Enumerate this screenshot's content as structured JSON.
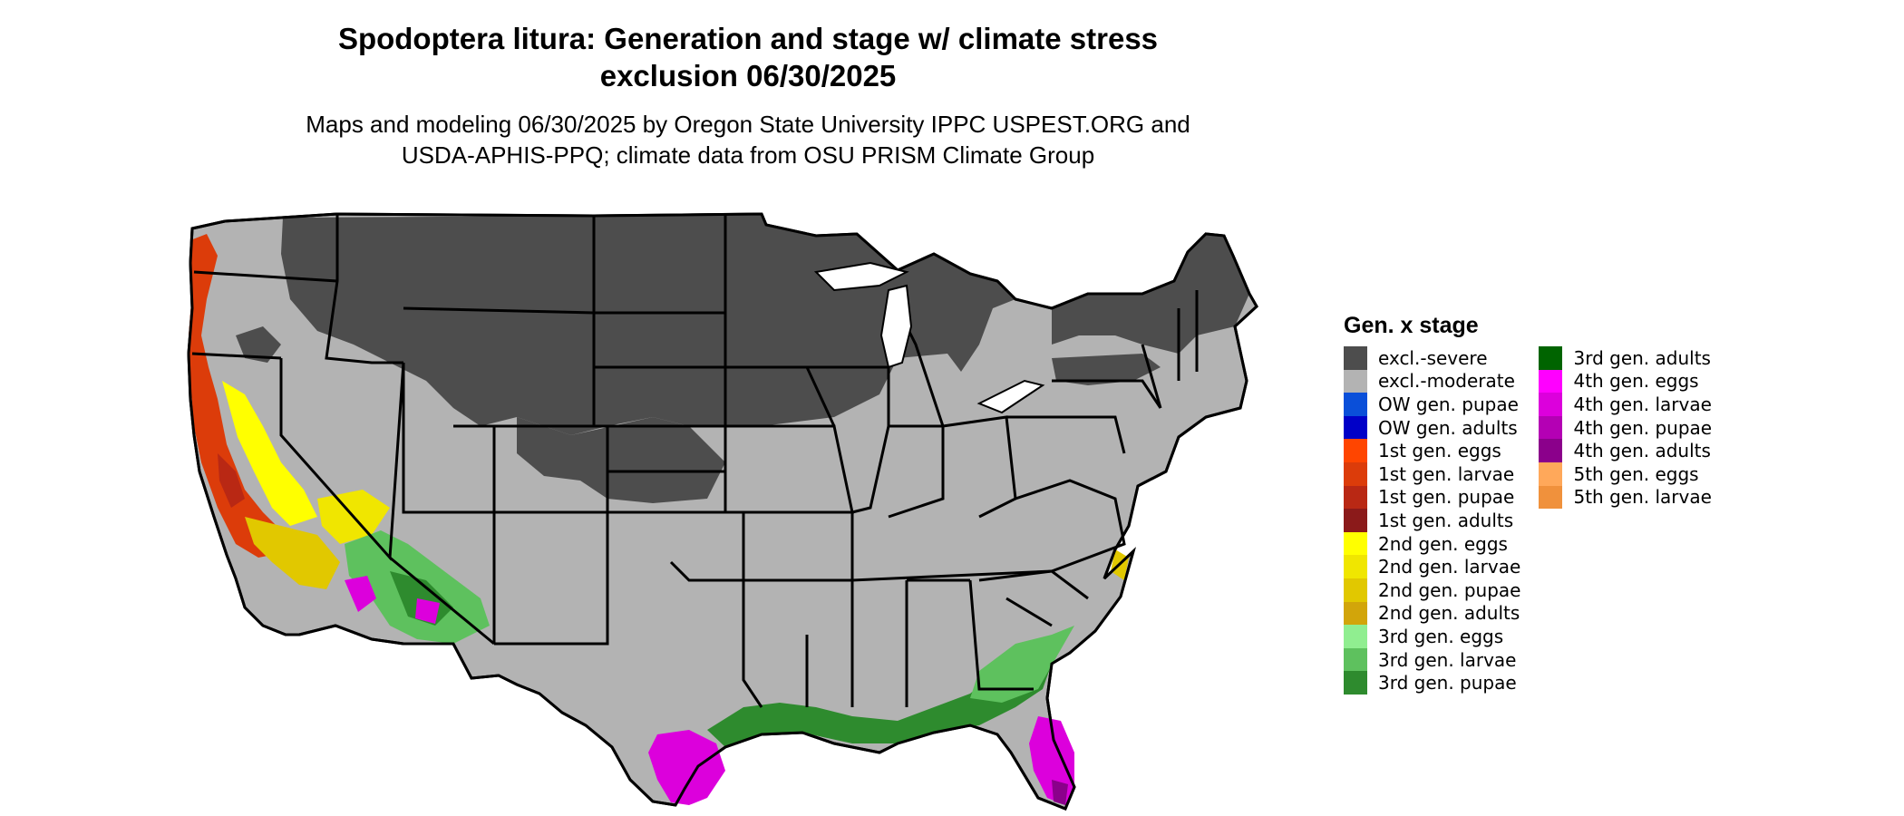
{
  "title": {
    "line1": "Spodoptera litura: Generation and stage w/ climate stress",
    "line2": "exclusion 06/30/2025"
  },
  "subtitle": {
    "line1": "Maps and modeling 06/30/2025 by Oregon State University IPPC USPEST.ORG and",
    "line2": "USDA-APHIS-PPQ; climate data from OSU PRISM Climate Group"
  },
  "legend": {
    "title": "Gen. x stage",
    "columns": [
      [
        {
          "label": "excl.-severe",
          "color": "#4d4d4d"
        },
        {
          "label": "excl.-moderate",
          "color": "#b3b3b3"
        },
        {
          "label": "OW gen. pupae",
          "color": "#0a4fd9"
        },
        {
          "label": "OW gen. adults",
          "color": "#0000c8"
        },
        {
          "label": "1st gen. eggs",
          "color": "#ff4500"
        },
        {
          "label": "1st gen. larvae",
          "color": "#dc3c0a"
        },
        {
          "label": "1st gen. pupae",
          "color": "#b92814"
        },
        {
          "label": "1st gen. adults",
          "color": "#8b1a1a"
        },
        {
          "label": "2nd gen. eggs",
          "color": "#ffff00"
        },
        {
          "label": "2nd gen. larvae",
          "color": "#f0e600"
        },
        {
          "label": "2nd gen. pupae",
          "color": "#e1c800"
        },
        {
          "label": "2nd gen. adults",
          "color": "#d2a50a"
        },
        {
          "label": "3rd gen. eggs",
          "color": "#90ee90"
        },
        {
          "label": "3rd gen. larvae",
          "color": "#5ec15e"
        },
        {
          "label": "3rd gen. pupae",
          "color": "#2e8b2e"
        }
      ],
      [
        {
          "label": "3rd gen. adults",
          "color": "#006400"
        },
        {
          "label": "4th gen. eggs",
          "color": "#ff00ff"
        },
        {
          "label": "4th gen. larvae",
          "color": "#dc00dc"
        },
        {
          "label": "4th gen. pupae",
          "color": "#b400b4"
        },
        {
          "label": "4th gen. adults",
          "color": "#8b008b"
        },
        {
          "label": "5th gen. eggs",
          "color": "#ffa85a"
        },
        {
          "label": "5th gen. larvae",
          "color": "#f0913c"
        }
      ]
    ]
  },
  "map_colors": {
    "severe": "#4d4d4d",
    "moderate": "#b3b3b3",
    "border": "#000000"
  }
}
